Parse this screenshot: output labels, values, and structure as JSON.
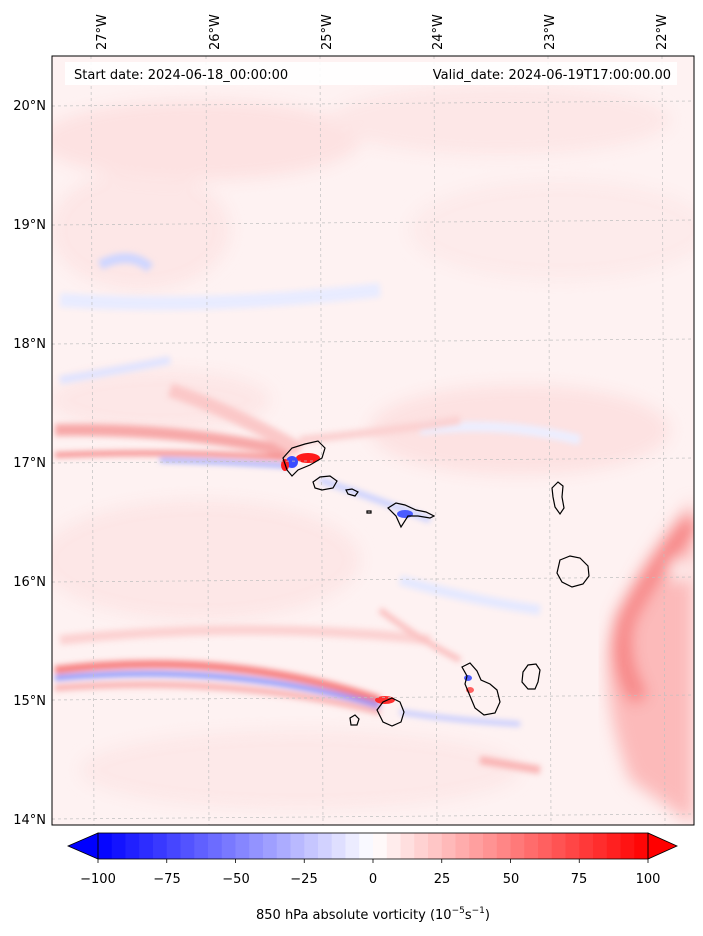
{
  "map": {
    "header_left": "Start date: 2024-06-18_00:00:00",
    "header_right": "Valid_date: 2024-06-19T17:00:00.00",
    "lon_ticks": [
      "27°W",
      "26°W",
      "25°W",
      "24°W",
      "23°W",
      "22°W"
    ],
    "lat_ticks": [
      "14°N",
      "15°N",
      "16°N",
      "17°N",
      "18°N",
      "19°N",
      "20°N"
    ],
    "extent": {
      "lon_min": -27.33,
      "lon_max": -21.9,
      "lat_min": 13.95,
      "lat_max": 20.43
    },
    "features": [
      "Santo Antão",
      "São Vicente",
      "Santa Luzia",
      "São Nicolau",
      "Sal",
      "Boa Vista",
      "Brava",
      "Fogo",
      "Santiago",
      "Maio"
    ],
    "colors": {
      "negative": "#0000ff",
      "neutral": "#ffffff",
      "positive": "#ff0000",
      "coastline": "#000000",
      "gridline": "#bfbfbf"
    }
  },
  "colorbar": {
    "label_main": "850 hPa absolute vorticity (10",
    "label_exp1": "−5",
    "label_mid": "s",
    "label_exp2": "−1",
    "label_end": ")",
    "ticks": [
      "−100",
      "−75",
      "−50",
      "−25",
      "0",
      "25",
      "50",
      "75",
      "100"
    ],
    "range": [
      -100,
      100
    ],
    "extend": "both"
  }
}
